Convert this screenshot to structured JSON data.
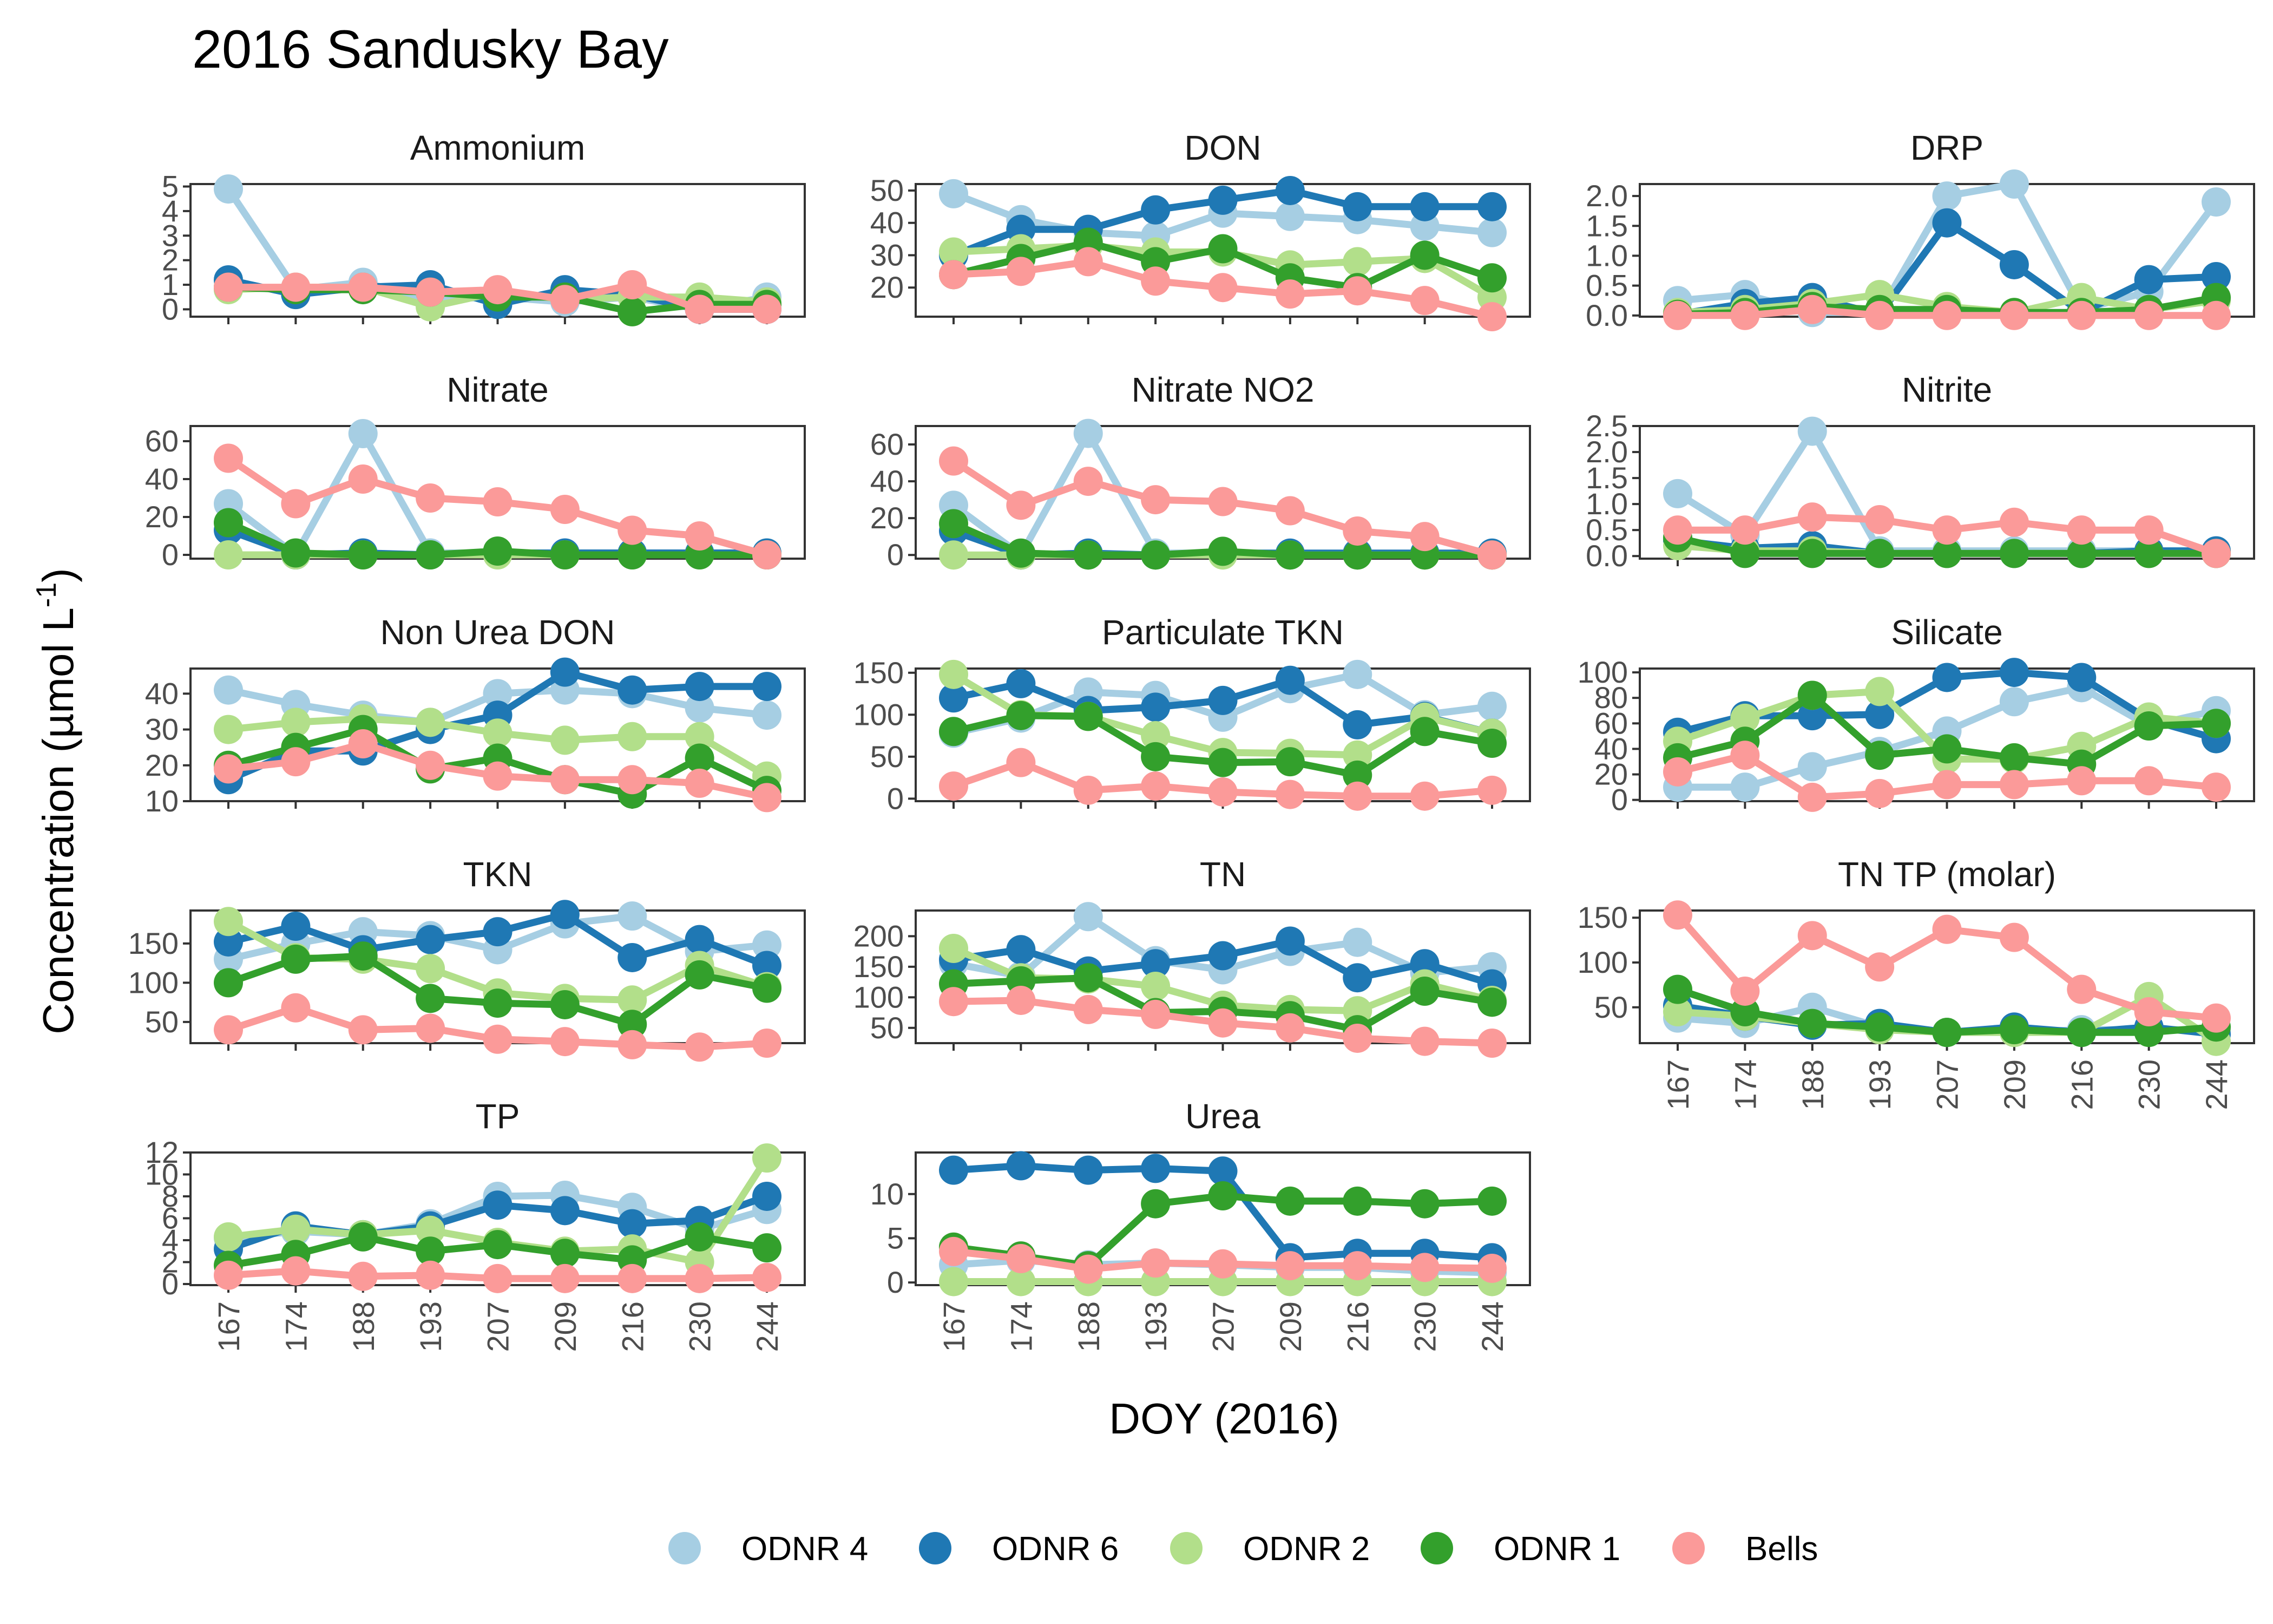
{
  "title": "2016 Sandusky Bay",
  "x_axis_title": "DOY (2016)",
  "y_axis_title": {
    "main": "Concentration (µmol L",
    "superscript": "-1",
    "close": ")"
  },
  "colors": {
    "ODNR 4": "#a6cee3",
    "ODNR 6": "#1f78b4",
    "ODNR 2": "#b2df8a",
    "ODNR 1": "#33a02c",
    "Bells": "#fb9a99"
  },
  "legend": [
    {
      "name": "ODNR 4",
      "color": "#a6cee3"
    },
    {
      "name": "ODNR 6",
      "color": "#1f78b4"
    },
    {
      "name": "ODNR 2",
      "color": "#b2df8a"
    },
    {
      "name": "ODNR 1",
      "color": "#33a02c"
    },
    {
      "name": "Bells",
      "color": "#fb9a99"
    }
  ],
  "chart_data": {
    "type": "line",
    "layout": "faceted small multiples, 3 columns, free y scales",
    "x": [
      "167",
      "174",
      "188",
      "193",
      "207",
      "209",
      "216",
      "230",
      "244"
    ],
    "xlabel": "DOY (2016)",
    "ylabel": "Concentration (µmol L-1)",
    "grid": false,
    "legend_position": "bottom",
    "series_order": [
      "ODNR 4",
      "ODNR 6",
      "ODNR 2",
      "ODNR 1",
      "Bells"
    ],
    "panels": [
      {
        "name": "Ammonium",
        "ylim": [
          -0.3,
          5.1
        ],
        "yticks": [
          "0",
          "1",
          "2",
          "3",
          "4",
          "5"
        ],
        "series": {
          "ODNR 4": [
            4.9,
            0.8,
            1.1,
            0.4,
            0.5,
            0.3,
            0.5,
            0.0,
            0.5
          ],
          "ODNR 6": [
            1.2,
            0.6,
            0.9,
            1.0,
            0.2,
            0.8,
            0.6,
            0.0,
            0.0
          ],
          "ODNR 2": [
            0.8,
            0.9,
            0.9,
            0.1,
            0.7,
            0.4,
            0.5,
            0.5,
            0.3
          ],
          "ODNR 1": [
            0.9,
            0.8,
            0.8,
            0.7,
            0.5,
            0.5,
            -0.1,
            0.2,
            0.2
          ],
          "Bells": [
            0.9,
            0.9,
            0.9,
            0.7,
            0.8,
            0.4,
            1.0,
            0.0,
            0.0
          ]
        }
      },
      {
        "name": "DON",
        "ylim": [
          11,
          52
        ],
        "yticks": [
          "20",
          "30",
          "40",
          "50"
        ],
        "series": {
          "ODNR 4": [
            49,
            41,
            37,
            36,
            43,
            42,
            41,
            39,
            37
          ],
          "ODNR 6": [
            30,
            38,
            38,
            44,
            47,
            50,
            45,
            45,
            45
          ],
          "ODNR 2": [
            31,
            32,
            33,
            31,
            31,
            27,
            28,
            29,
            17
          ],
          "ODNR 1": [
            24,
            29,
            34,
            28,
            32,
            23,
            20,
            30,
            23
          ],
          "Bells": [
            24,
            25,
            28,
            22,
            20,
            18,
            19,
            16,
            11
          ]
        }
      },
      {
        "name": "DRP",
        "ylim": [
          -0.02,
          2.2
        ],
        "yticks": [
          "0.0",
          "0.5",
          "1.0",
          "1.5",
          "2.0"
        ],
        "series": {
          "ODNR 4": [
            0.25,
            0.35,
            0.05,
            0.05,
            2.0,
            2.2,
            0.1,
            0.4,
            1.9
          ],
          "ODNR 6": [
            0.02,
            0.2,
            0.3,
            0.02,
            1.55,
            0.85,
            0.05,
            0.6,
            0.65
          ],
          "ODNR 2": [
            0.05,
            0.1,
            0.2,
            0.35,
            0.15,
            0.05,
            0.3,
            0.1,
            0.25
          ],
          "ODNR 1": [
            0.02,
            0.05,
            0.15,
            0.1,
            0.1,
            0.05,
            0.05,
            0.1,
            0.3
          ],
          "Bells": [
            0.0,
            0.0,
            0.1,
            0.0,
            0.0,
            0.0,
            0.0,
            0.0,
            0.0
          ]
        }
      },
      {
        "name": "Nitrate",
        "ylim": [
          -2,
          68
        ],
        "yticks": [
          "0",
          "20",
          "40",
          "60"
        ],
        "series": {
          "ODNR 4": [
            27,
            0,
            64,
            1,
            1,
            0,
            0,
            1,
            0
          ],
          "ODNR 6": [
            13,
            0,
            1,
            0,
            1,
            1,
            1,
            1,
            1
          ],
          "ODNR 2": [
            0,
            0,
            0,
            0,
            0,
            0,
            0,
            0,
            0
          ],
          "ODNR 1": [
            17,
            1,
            0,
            0,
            2,
            0,
            0,
            0,
            0
          ],
          "Bells": [
            51,
            27,
            40,
            30,
            28,
            24,
            13,
            10,
            0
          ]
        }
      },
      {
        "name": "Nitrate NO2",
        "ylim": [
          -2,
          70
        ],
        "yticks": [
          "0",
          "20",
          "40",
          "60"
        ],
        "series": {
          "ODNR 4": [
            27,
            0,
            66,
            1,
            1,
            0,
            0,
            1,
            0
          ],
          "ODNR 6": [
            13,
            0,
            1,
            0,
            1,
            1,
            1,
            1,
            1
          ],
          "ODNR 2": [
            0,
            0,
            0,
            0,
            0,
            0,
            0,
            0,
            0
          ],
          "ODNR 1": [
            17,
            1,
            0,
            0,
            2,
            0,
            0,
            0,
            0
          ],
          "Bells": [
            51,
            27,
            40,
            30,
            29,
            24,
            13,
            10,
            0
          ]
        }
      },
      {
        "name": "Nitrite",
        "ylim": [
          -0.05,
          2.5
        ],
        "yticks": [
          "0.0",
          "0.5",
          "1.0",
          "1.5",
          "2.0",
          "2.5"
        ],
        "series": {
          "ODNR 4": [
            1.2,
            0.4,
            2.4,
            0.1,
            0.1,
            0.1,
            0.1,
            0.1,
            0.1
          ],
          "ODNR 6": [
            0.3,
            0.15,
            0.2,
            0.05,
            0.05,
            0.05,
            0.05,
            0.1,
            0.1
          ],
          "ODNR 2": [
            0.2,
            0.1,
            0.1,
            0.05,
            0.05,
            0.05,
            0.05,
            0.05,
            0.05
          ],
          "ODNR 1": [
            0.35,
            0.05,
            0.05,
            0.05,
            0.05,
            0.05,
            0.05,
            0.05,
            0.05
          ],
          "Bells": [
            0.5,
            0.5,
            0.75,
            0.7,
            0.5,
            0.65,
            0.5,
            0.5,
            0.05
          ]
        }
      },
      {
        "name": "Non Urea DON",
        "ylim": [
          10,
          47
        ],
        "yticks": [
          "10",
          "20",
          "30",
          "40"
        ],
        "series": {
          "ODNR 4": [
            41,
            37,
            34,
            32,
            40,
            41,
            40,
            36,
            34
          ],
          "ODNR 6": [
            16,
            24,
            24,
            30,
            34,
            46,
            41,
            42,
            42
          ],
          "ODNR 2": [
            30,
            32,
            33,
            32,
            29,
            27,
            28,
            28,
            17
          ],
          "ODNR 1": [
            20,
            25,
            30,
            19,
            22,
            16,
            12,
            22,
            13
          ],
          "Bells": [
            19,
            21,
            26,
            20,
            17,
            16,
            16,
            15,
            11
          ]
        }
      },
      {
        "name": "Particulate TKN",
        "ylim": [
          -3,
          155
        ],
        "yticks": [
          "0",
          "50",
          "100",
          "150"
        ],
        "series": {
          "ODNR 4": [
            78,
            96,
            127,
            123,
            97,
            131,
            148,
            100,
            110
          ],
          "ODNR 6": [
            120,
            137,
            105,
            109,
            117,
            141,
            88,
            98,
            78
          ],
          "ODNR 2": [
            148,
            100,
            98,
            75,
            55,
            54,
            52,
            97,
            78
          ],
          "ODNR 1": [
            80,
            99,
            98,
            50,
            43,
            44,
            28,
            80,
            66
          ],
          "Bells": [
            15,
            43,
            10,
            15,
            8,
            5,
            3,
            3,
            10
          ]
        }
      },
      {
        "name": "Silicate",
        "ylim": [
          -1,
          103
        ],
        "yticks": [
          "0",
          "20",
          "40",
          "60",
          "80",
          "100"
        ],
        "series": {
          "ODNR 4": [
            10,
            10,
            26,
            38,
            54,
            77,
            88,
            58,
            70
          ],
          "ODNR 6": [
            53,
            66,
            66,
            67,
            96,
            100,
            96,
            63,
            48
          ],
          "ODNR 2": [
            46,
            64,
            82,
            85,
            32,
            32,
            42,
            65,
            60
          ],
          "ODNR 1": [
            33,
            46,
            82,
            35,
            40,
            33,
            28,
            58,
            60
          ],
          "Bells": [
            22,
            35,
            2,
            5,
            12,
            12,
            15,
            15,
            10
          ]
        }
      },
      {
        "name": "TKN",
        "ylim": [
          23,
          192
        ],
        "yticks": [
          "50",
          "100",
          "150"
        ],
        "series": {
          "ODNR 4": [
            130,
            150,
            165,
            160,
            142,
            175,
            185,
            140,
            148
          ],
          "ODNR 6": [
            152,
            172,
            142,
            155,
            165,
            187,
            132,
            155,
            122
          ],
          "ODNR 2": [
            178,
            132,
            130,
            118,
            87,
            80,
            78,
            122,
            95
          ],
          "ODNR 1": [
            100,
            130,
            134,
            80,
            74,
            72,
            47,
            110,
            93
          ],
          "Bells": [
            40,
            68,
            40,
            42,
            28,
            25,
            21,
            18,
            23
          ]
        }
      },
      {
        "name": "TN",
        "ylim": [
          25,
          242
        ],
        "yticks": [
          "50",
          "100",
          "150",
          "200"
        ],
        "series": {
          "ODNR 4": [
            155,
            135,
            232,
            160,
            145,
            175,
            190,
            140,
            150
          ],
          "ODNR 6": [
            162,
            178,
            143,
            155,
            168,
            192,
            132,
            155,
            122
          ],
          "ODNR 2": [
            180,
            132,
            130,
            118,
            87,
            80,
            78,
            122,
            95
          ],
          "ODNR 1": [
            122,
            127,
            132,
            75,
            77,
            70,
            47,
            110,
            92
          ],
          "Bells": [
            93,
            95,
            80,
            72,
            58,
            50,
            33,
            28,
            25
          ]
        }
      },
      {
        "name": "TN TP (molar)",
        "ylim": [
          10,
          158
        ],
        "yticks": [
          "50",
          "100",
          "150"
        ],
        "series": {
          "ODNR 4": [
            38,
            32,
            50,
            28,
            22,
            22,
            25,
            25,
            25
          ],
          "ODNR 6": [
            52,
            40,
            30,
            32,
            22,
            28,
            22,
            28,
            20
          ],
          "ODNR 2": [
            45,
            40,
            32,
            25,
            22,
            22,
            22,
            62,
            12
          ],
          "ODNR 1": [
            70,
            45,
            32,
            28,
            22,
            25,
            22,
            22,
            28
          ],
          "Bells": [
            153,
            68,
            130,
            95,
            137,
            128,
            70,
            45,
            38
          ]
        }
      },
      {
        "name": "TP",
        "ylim": [
          -0.1,
          12
        ],
        "yticks": [
          "0",
          "2",
          "4",
          "6",
          "8",
          "10",
          "12"
        ],
        "series": {
          "ODNR 4": [
            4.2,
            4.8,
            4.5,
            5.5,
            8.0,
            8.1,
            7.0,
            5.0,
            6.8
          ],
          "ODNR 6": [
            3.2,
            5.3,
            4.5,
            5.3,
            7.2,
            6.7,
            5.5,
            5.8,
            8.0
          ],
          "ODNR 2": [
            4.3,
            5.0,
            4.5,
            4.9,
            3.8,
            3.0,
            3.2,
            2.0,
            11.5
          ],
          "ODNR 1": [
            1.7,
            2.7,
            4.3,
            3.0,
            3.6,
            2.8,
            2.2,
            4.3,
            3.3
          ],
          "Bells": [
            0.8,
            1.2,
            0.7,
            0.8,
            0.5,
            0.5,
            0.5,
            0.5,
            0.6
          ]
        }
      },
      {
        "name": "Urea",
        "ylim": [
          -0.3,
          14.7
        ],
        "yticks": [
          "0",
          "5",
          "10"
        ],
        "series": {
          "ODNR 4": [
            2.0,
            2.5,
            2.0,
            2.2,
            2.0,
            1.7,
            1.7,
            1.3,
            1.1
          ],
          "ODNR 6": [
            12.7,
            13.2,
            12.7,
            12.9,
            12.6,
            2.8,
            3.3,
            3.3,
            2.8
          ],
          "ODNR 2": [
            0.1,
            0.1,
            0.1,
            0.1,
            0.1,
            0.1,
            0.1,
            0.1,
            0.1
          ],
          "ODNR 1": [
            4.0,
            3.0,
            1.9,
            8.9,
            9.8,
            9.2,
            9.2,
            8.9,
            9.2
          ],
          "Bells": [
            3.5,
            2.7,
            1.5,
            2.2,
            2.1,
            1.9,
            1.9,
            1.7,
            1.6
          ]
        }
      }
    ]
  }
}
